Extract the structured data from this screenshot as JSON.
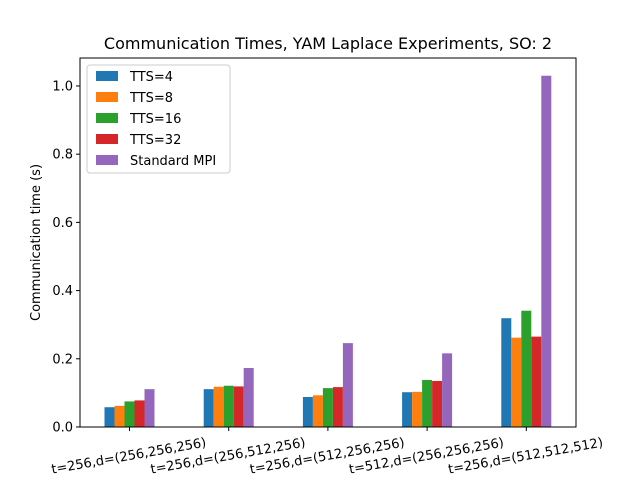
{
  "chart_data": {
    "type": "bar",
    "title": "Communication Times, YAM Laplace Experiments, SO: 2",
    "xlabel": "",
    "ylabel": "Communication time (s)",
    "ylim": [
      0,
      1.082
    ],
    "yticks": [
      "0.0",
      "0.2",
      "0.4",
      "0.6",
      "0.8",
      "1.0"
    ],
    "ytick_values": [
      0,
      0.2,
      0.4,
      0.6,
      0.8,
      1.0
    ],
    "categories": [
      "t=256,d=(256,256,256)",
      "t=256,d=(256,512,256)",
      "t=256,d=(512,256,256)",
      "t=512,d=(256,256,256)",
      "t=256,d=(512,512,512)"
    ],
    "series": [
      {
        "name": "TTS=4",
        "color": "#1f77b4",
        "values": [
          0.058,
          0.111,
          0.088,
          0.102,
          0.319
        ]
      },
      {
        "name": "TTS=8",
        "color": "#ff7f0e",
        "values": [
          0.062,
          0.118,
          0.093,
          0.103,
          0.262
        ]
      },
      {
        "name": "TTS=16",
        "color": "#2ca02c",
        "values": [
          0.075,
          0.121,
          0.114,
          0.138,
          0.341
        ]
      },
      {
        "name": "TTS=32",
        "color": "#d62728",
        "values": [
          0.078,
          0.119,
          0.117,
          0.135,
          0.265
        ]
      },
      {
        "name": "Standard MPI",
        "color": "#9467bd",
        "values": [
          0.111,
          0.173,
          0.246,
          0.216,
          1.03
        ]
      }
    ],
    "legend_position": "top-left",
    "grid": false
  }
}
